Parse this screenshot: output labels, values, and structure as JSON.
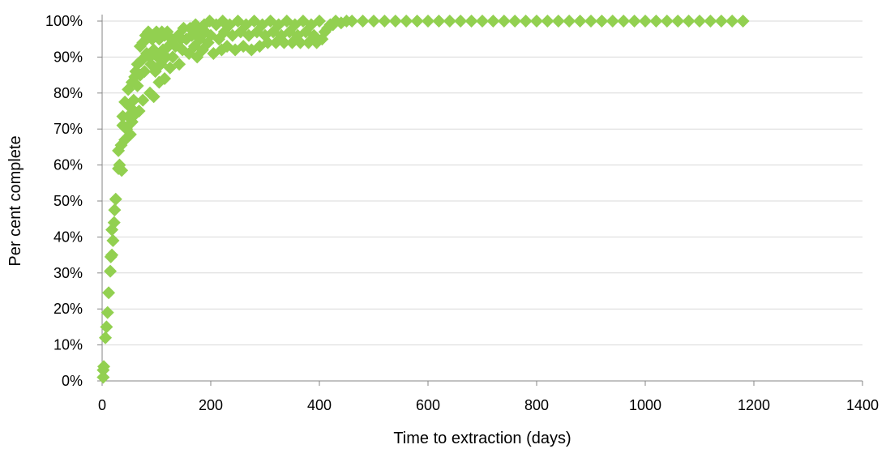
{
  "colors": {
    "marker": "#92d050",
    "gridline": "#d9d9d9",
    "axis": "#868686",
    "background": "#ffffff"
  },
  "chart_data": {
    "type": "scatter",
    "title": "",
    "xlabel": "Time to extraction (days)",
    "ylabel": "Per cent complete",
    "xlim": [
      0,
      1400
    ],
    "ylim": [
      0,
      1
    ],
    "x_ticks": [
      0,
      200,
      400,
      600,
      800,
      1000,
      1200,
      1400
    ],
    "x_tick_labels": [
      "0",
      "200",
      "400",
      "600",
      "800",
      "1000",
      "1200",
      "1400"
    ],
    "y_ticks": [
      0,
      0.1,
      0.2,
      0.3,
      0.4,
      0.5,
      0.6,
      0.7,
      0.8,
      0.9,
      1.0
    ],
    "y_tick_labels": [
      "0%",
      "10%",
      "20%",
      "30%",
      "40%",
      "50%",
      "60%",
      "70%",
      "80%",
      "90%",
      "100%"
    ],
    "grid": "horizontal",
    "legend": "none",
    "marker": "diamond",
    "series": [
      {
        "points": [
          [
            2,
            0.01
          ],
          [
            2,
            0.03
          ],
          [
            3,
            0.04
          ],
          [
            6,
            0.12
          ],
          [
            8,
            0.15
          ],
          [
            10,
            0.19
          ],
          [
            12,
            0.245
          ],
          [
            15,
            0.305
          ],
          [
            16,
            0.345
          ],
          [
            18,
            0.35
          ],
          [
            18,
            0.42
          ],
          [
            20,
            0.39
          ],
          [
            22,
            0.44
          ],
          [
            23,
            0.475
          ],
          [
            25,
            0.505
          ],
          [
            30,
            0.59
          ],
          [
            32,
            0.6
          ],
          [
            30,
            0.64
          ],
          [
            36,
            0.585
          ],
          [
            35,
            0.655
          ],
          [
            38,
            0.71
          ],
          [
            38,
            0.735
          ],
          [
            42,
            0.67
          ],
          [
            42,
            0.775
          ],
          [
            45,
            0.7
          ],
          [
            48,
            0.735
          ],
          [
            48,
            0.81
          ],
          [
            52,
            0.685
          ],
          [
            52,
            0.76
          ],
          [
            55,
            0.72
          ],
          [
            55,
            0.83
          ],
          [
            58,
            0.78
          ],
          [
            60,
            0.74
          ],
          [
            60,
            0.845
          ],
          [
            62,
            0.86
          ],
          [
            65,
            0.82
          ],
          [
            65,
            0.88
          ],
          [
            68,
            0.75
          ],
          [
            70,
            0.85
          ],
          [
            70,
            0.93
          ],
          [
            72,
            0.89
          ],
          [
            75,
            0.78
          ],
          [
            75,
            0.94
          ],
          [
            78,
            0.86
          ],
          [
            80,
            0.96
          ],
          [
            82,
            0.91
          ],
          [
            85,
            0.97
          ],
          [
            88,
            0.8
          ],
          [
            88,
            0.9
          ],
          [
            90,
            0.88
          ],
          [
            92,
            0.95
          ],
          [
            95,
            0.79
          ],
          [
            95,
            0.92
          ],
          [
            98,
            0.86
          ],
          [
            100,
            0.97
          ],
          [
            102,
            0.9
          ],
          [
            105,
            0.83
          ],
          [
            105,
            0.95
          ],
          [
            108,
            0.88
          ],
          [
            110,
            0.97
          ],
          [
            112,
            0.92
          ],
          [
            115,
            0.84
          ],
          [
            115,
            0.96
          ],
          [
            118,
            0.9
          ],
          [
            120,
            0.97
          ],
          [
            122,
            0.93
          ],
          [
            125,
            0.87
          ],
          [
            128,
            0.95
          ],
          [
            130,
            0.9
          ],
          [
            135,
            0.93
          ],
          [
            140,
            0.96
          ],
          [
            142,
            0.88
          ],
          [
            145,
            0.95
          ],
          [
            148,
            0.92
          ],
          [
            150,
            0.98
          ],
          [
            155,
            0.95
          ],
          [
            160,
            0.91
          ],
          [
            162,
            0.98
          ],
          [
            165,
            0.96
          ],
          [
            170,
            0.93
          ],
          [
            172,
            0.99
          ],
          [
            175,
            0.9
          ],
          [
            178,
            0.97
          ],
          [
            180,
            0.95
          ],
          [
            185,
            0.92
          ],
          [
            188,
            0.99
          ],
          [
            190,
            0.97
          ],
          [
            195,
            0.94
          ],
          [
            198,
            1.0
          ],
          [
            200,
            0.96
          ],
          [
            205,
            0.91
          ],
          [
            210,
            0.99
          ],
          [
            215,
            0.95
          ],
          [
            220,
            0.92
          ],
          [
            222,
            1.0
          ],
          [
            225,
            0.97
          ],
          [
            230,
            0.93
          ],
          [
            235,
            0.99
          ],
          [
            240,
            0.96
          ],
          [
            245,
            0.92
          ],
          [
            250,
            1.0
          ],
          [
            255,
            0.97
          ],
          [
            260,
            0.93
          ],
          [
            265,
            0.99
          ],
          [
            270,
            0.96
          ],
          [
            275,
            0.92
          ],
          [
            280,
            1.0
          ],
          [
            285,
            0.97
          ],
          [
            290,
            0.93
          ],
          [
            295,
            0.99
          ],
          [
            300,
            0.96
          ],
          [
            305,
            0.94
          ],
          [
            310,
            1.0
          ],
          [
            315,
            0.97
          ],
          [
            320,
            0.94
          ],
          [
            325,
            0.99
          ],
          [
            330,
            0.96
          ],
          [
            335,
            0.94
          ],
          [
            340,
            1.0
          ],
          [
            345,
            0.97
          ],
          [
            350,
            0.94
          ],
          [
            355,
            0.99
          ],
          [
            360,
            0.96
          ],
          [
            365,
            0.94
          ],
          [
            370,
            1.0
          ],
          [
            375,
            0.97
          ],
          [
            380,
            0.94
          ],
          [
            385,
            0.99
          ],
          [
            390,
            0.96
          ],
          [
            395,
            0.94
          ],
          [
            400,
            1.0
          ],
          [
            405,
            0.95
          ],
          [
            410,
            0.97
          ],
          [
            415,
            0.98
          ],
          [
            420,
            0.99
          ],
          [
            425,
            0.99
          ],
          [
            430,
            1.0
          ],
          [
            440,
            0.995
          ],
          [
            450,
            1.0
          ],
          [
            460,
            1.0
          ],
          [
            480,
            1.0
          ],
          [
            500,
            1.0
          ],
          [
            520,
            1.0
          ],
          [
            540,
            1.0
          ],
          [
            560,
            1.0
          ],
          [
            580,
            1.0
          ],
          [
            600,
            1.0
          ],
          [
            620,
            1.0
          ],
          [
            640,
            1.0
          ],
          [
            660,
            1.0
          ],
          [
            680,
            1.0
          ],
          [
            700,
            1.0
          ],
          [
            720,
            1.0
          ],
          [
            740,
            1.0
          ],
          [
            760,
            1.0
          ],
          [
            780,
            1.0
          ],
          [
            800,
            1.0
          ],
          [
            820,
            1.0
          ],
          [
            840,
            1.0
          ],
          [
            860,
            1.0
          ],
          [
            880,
            1.0
          ],
          [
            900,
            1.0
          ],
          [
            920,
            1.0
          ],
          [
            940,
            1.0
          ],
          [
            960,
            1.0
          ],
          [
            980,
            1.0
          ],
          [
            1000,
            1.0
          ],
          [
            1020,
            1.0
          ],
          [
            1040,
            1.0
          ],
          [
            1060,
            1.0
          ],
          [
            1080,
            1.0
          ],
          [
            1100,
            1.0
          ],
          [
            1120,
            1.0
          ],
          [
            1140,
            1.0
          ],
          [
            1160,
            1.0
          ],
          [
            1180,
            1.0
          ]
        ]
      }
    ]
  }
}
